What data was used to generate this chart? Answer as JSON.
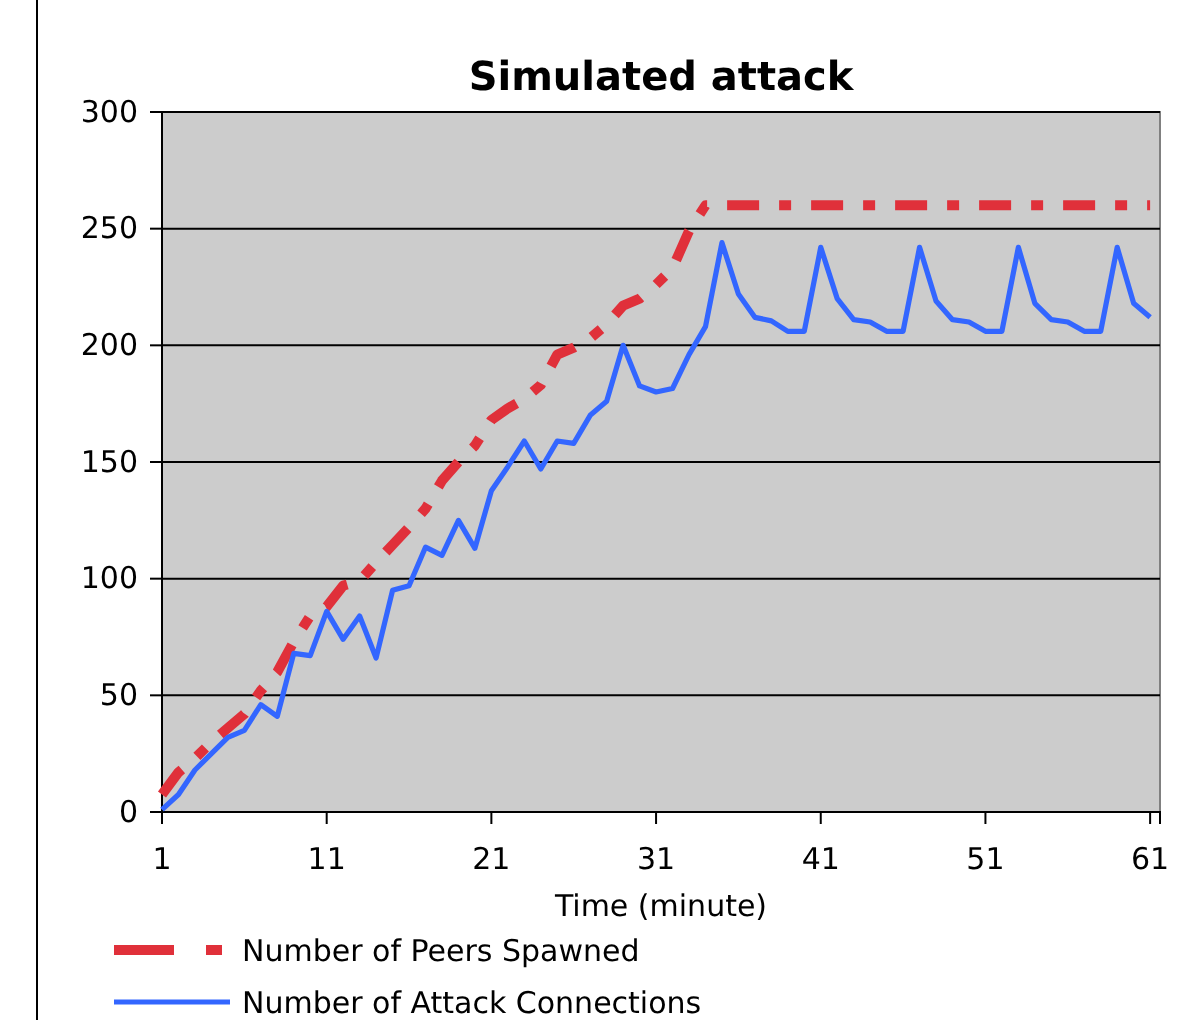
{
  "chart_data": {
    "type": "line",
    "title": "Simulated attack",
    "xlabel": "Time (minute)",
    "x": [
      1,
      2,
      3,
      4,
      5,
      6,
      7,
      8,
      9,
      10,
      11,
      12,
      13,
      14,
      15,
      16,
      17,
      18,
      19,
      20,
      21,
      22,
      23,
      24,
      25,
      26,
      27,
      28,
      29,
      30,
      31,
      32,
      33,
      34,
      35,
      36,
      37,
      38,
      39,
      40,
      41,
      42,
      43,
      44,
      45,
      46,
      47,
      48,
      49,
      50,
      51,
      52,
      53,
      54,
      55,
      56,
      57,
      58,
      59,
      60,
      61
    ],
    "xlim": [
      1,
      61.6
    ],
    "xticks": [
      1,
      11,
      21,
      31,
      41,
      51,
      61
    ],
    "ylim": [
      0,
      300
    ],
    "yticks": [
      0,
      50,
      100,
      150,
      200,
      250,
      300
    ],
    "grid": "y",
    "legend": "bottom",
    "series": [
      {
        "name": "Number of Peers Spawned",
        "color": "#e0303a",
        "line_style": "dashed",
        "values": [
          7.5,
          17,
          23,
          30,
          36,
          42,
          52,
          60,
          73,
          84,
          88,
          97,
          99,
          107,
          114.5,
          122,
          130,
          142,
          150,
          157,
          168,
          173,
          177,
          183,
          196,
          199,
          203,
          209,
          217,
          220,
          226,
          233,
          249,
          260,
          260,
          260,
          260,
          260,
          260,
          260,
          260,
          260,
          260,
          260,
          260,
          260,
          260,
          260,
          260,
          260,
          260,
          260,
          260,
          260,
          260,
          260,
          260,
          260,
          260,
          260,
          260
        ]
      },
      {
        "name": "Number of Attack Connections",
        "color": "#3366ff",
        "line_style": "solid",
        "values": [
          1,
          7.5,
          18,
          25,
          32,
          35,
          46,
          41,
          68,
          67,
          86,
          74,
          84,
          66,
          95,
          97,
          113.5,
          110,
          125,
          113,
          137.7,
          148,
          159,
          147,
          159,
          158,
          170,
          176,
          200,
          182.6,
          180,
          181.5,
          196,
          208,
          244,
          222,
          212,
          210.5,
          206,
          206,
          242,
          220,
          211,
          210,
          206,
          206,
          242,
          219,
          211,
          210,
          206,
          206,
          242,
          218,
          211,
          210,
          206,
          206,
          242,
          218,
          212
        ]
      }
    ]
  }
}
